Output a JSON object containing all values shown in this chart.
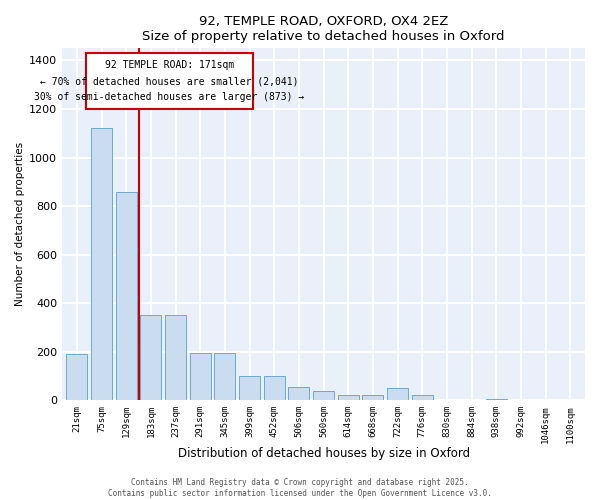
{
  "title_line1": "92, TEMPLE ROAD, OXFORD, OX4 2EZ",
  "title_line2": "Size of property relative to detached houses in Oxford",
  "xlabel": "Distribution of detached houses by size in Oxford",
  "ylabel": "Number of detached properties",
  "categories": [
    "21sqm",
    "75sqm",
    "129sqm",
    "183sqm",
    "237sqm",
    "291sqm",
    "345sqm",
    "399sqm",
    "452sqm",
    "506sqm",
    "560sqm",
    "614sqm",
    "668sqm",
    "722sqm",
    "776sqm",
    "830sqm",
    "884sqm",
    "938sqm",
    "992sqm",
    "1046sqm",
    "1100sqm"
  ],
  "values": [
    190,
    1120,
    860,
    350,
    350,
    195,
    195,
    100,
    100,
    55,
    40,
    20,
    20,
    50,
    20,
    0,
    0,
    5,
    0,
    0,
    0
  ],
  "bar_color": "#c9dcf0",
  "bar_edge_color": "#6aaad4",
  "vline_color": "#cc0000",
  "annotation_box_color": "#cc0000",
  "background_color": "#eaf0f9",
  "grid_color": "#ffffff",
  "footer_line1": "Contains HM Land Registry data © Crown copyright and database right 2025.",
  "footer_line2": "Contains public sector information licensed under the Open Government Licence v3.0.",
  "ylim": [
    0,
    1450
  ],
  "yticks": [
    0,
    200,
    400,
    600,
    800,
    1000,
    1200,
    1400
  ],
  "ann_text_line1": "92 TEMPLE ROAD: 171sqm",
  "ann_text_line2": "← 70% of detached houses are smaller (2,041)",
  "ann_text_line3": "30% of semi-detached houses are larger (873) →"
}
